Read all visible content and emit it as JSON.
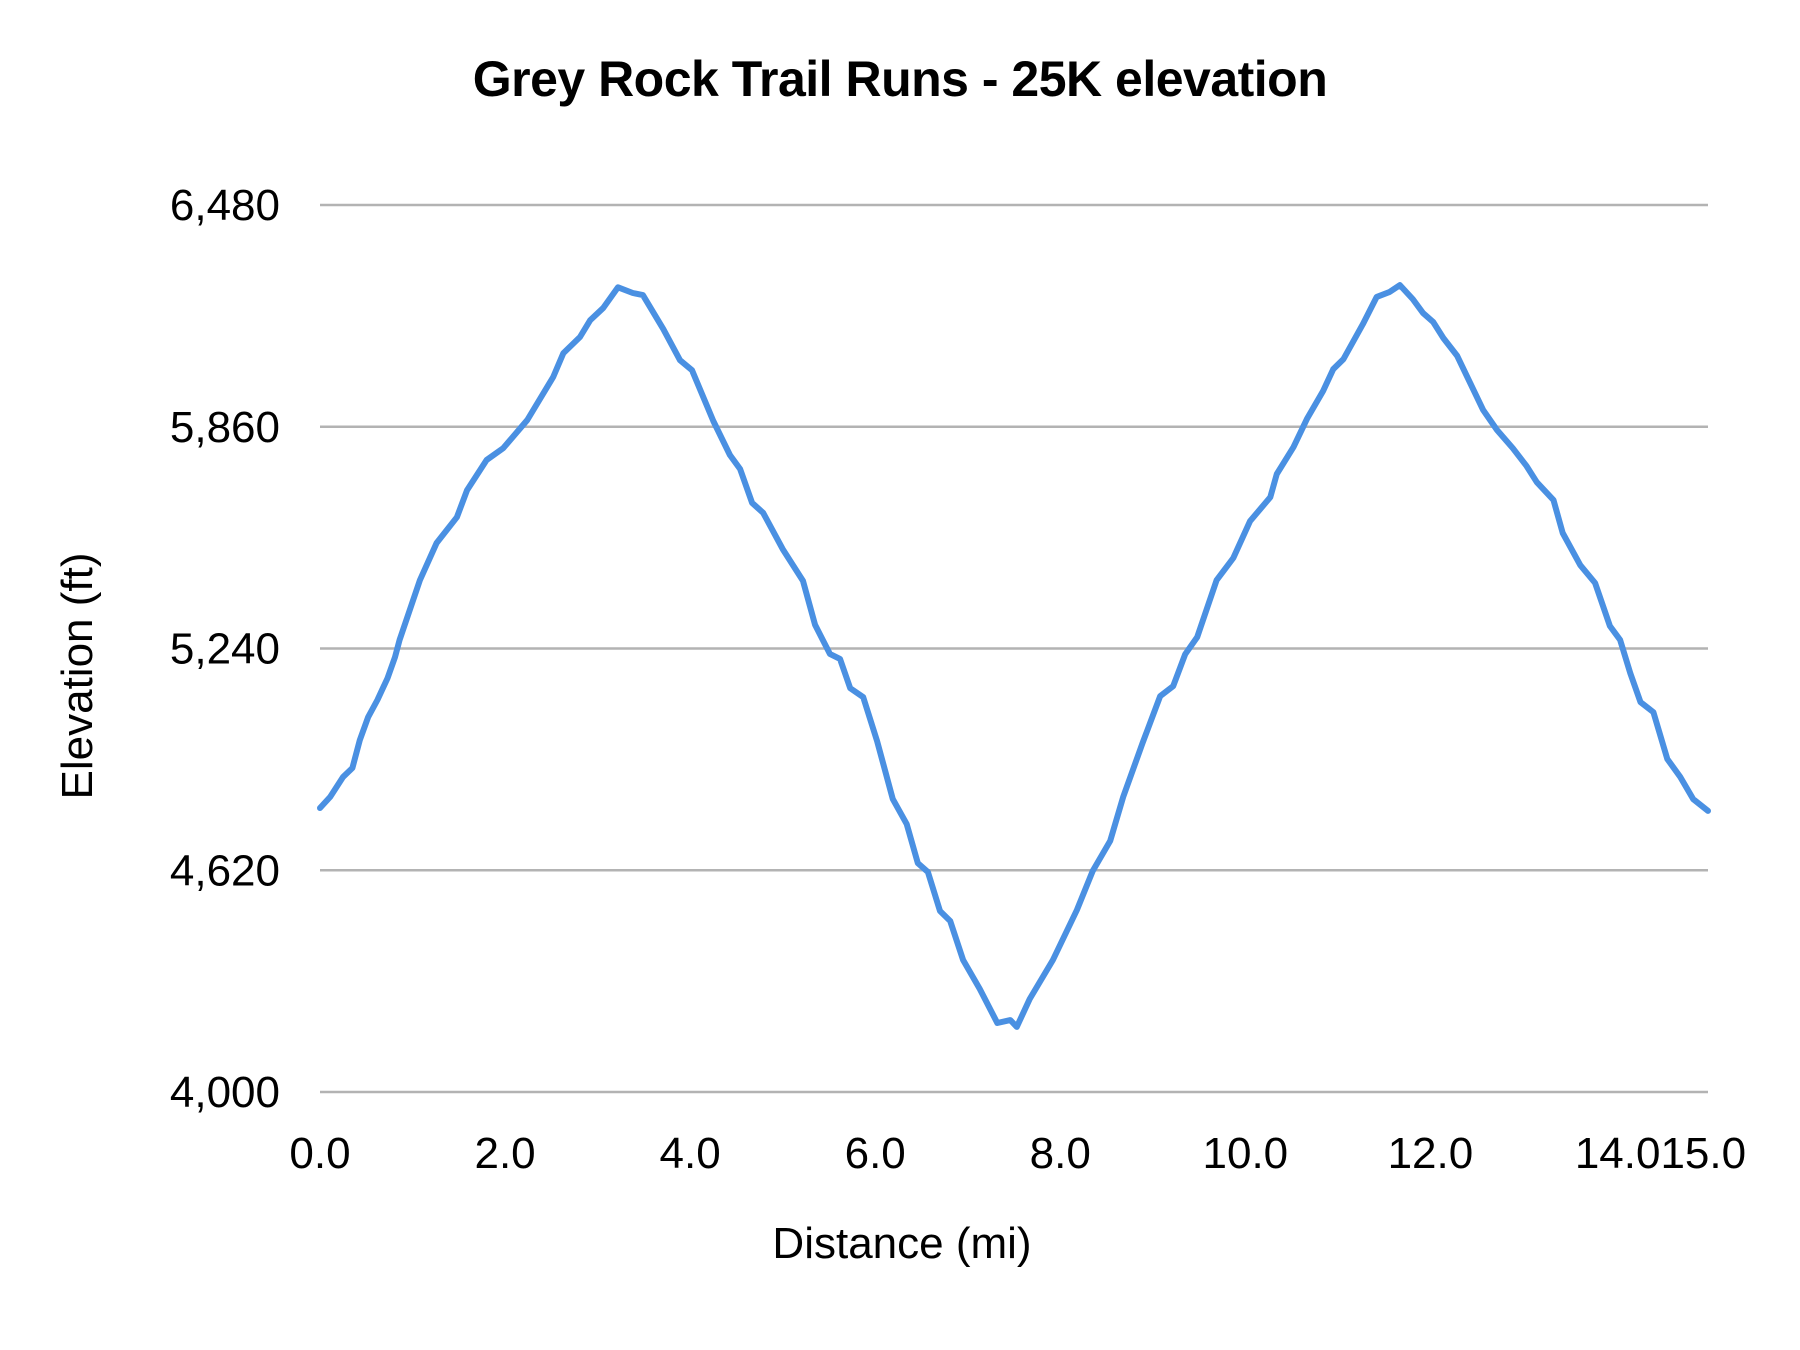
{
  "chart_data": {
    "type": "line",
    "title": "Grey Rock Trail Runs - 25K elevation",
    "xlabel": "Distance (mi)",
    "ylabel": "Elevation (ft)",
    "xlim": [
      0,
      15
    ],
    "ylim": [
      4000,
      6480
    ],
    "grid": "horizontal",
    "legend": "none",
    "x_ticks": [
      0,
      2,
      4,
      6,
      8,
      10,
      12,
      14,
      15
    ],
    "x_tick_labels": [
      "0.0",
      "2.0",
      "4.0",
      "6.0",
      "8.0",
      "10.0",
      "12.0",
      "14.0",
      "15.0"
    ],
    "y_ticks": [
      4000,
      4620,
      5240,
      5860,
      6480
    ],
    "y_tick_labels": [
      "4,000",
      "4,620",
      "5,240",
      "5,860",
      "6,480"
    ],
    "series": [
      {
        "name": "Elevation",
        "color": "#4a90e2",
        "x": [
          0.0,
          0.11,
          0.25,
          0.35,
          0.43,
          0.52,
          0.62,
          0.73,
          0.81,
          0.86,
          1.08,
          1.26,
          1.48,
          1.59,
          1.8,
          1.98,
          2.24,
          2.52,
          2.63,
          2.81,
          2.92,
          3.06,
          3.22,
          3.38,
          3.49,
          3.71,
          3.89,
          4.02,
          4.25,
          4.43,
          4.54,
          4.67,
          4.79,
          5.0,
          5.22,
          5.35,
          5.51,
          5.62,
          5.73,
          5.87,
          6.02,
          6.19,
          6.34,
          6.46,
          6.57,
          6.7,
          6.81,
          6.95,
          7.13,
          7.32,
          7.46,
          7.53,
          7.67,
          7.92,
          8.18,
          8.35,
          8.54,
          8.68,
          8.89,
          9.08,
          9.22,
          9.35,
          9.48,
          9.69,
          9.87,
          10.05,
          10.27,
          10.34,
          10.52,
          10.67,
          10.84,
          10.95,
          11.06,
          11.27,
          11.42,
          11.56,
          11.67,
          11.81,
          11.92,
          12.03,
          12.14,
          12.29,
          12.43,
          12.57,
          12.72,
          12.89,
          13.04,
          13.15,
          13.33,
          13.43,
          13.62,
          13.78,
          13.94,
          14.05,
          14.16,
          14.27,
          14.41,
          14.56,
          14.7,
          14.84,
          15.0
        ],
        "y": [
          4794,
          4825,
          4881,
          4906,
          4984,
          5048,
          5096,
          5157,
          5216,
          5264,
          5431,
          5535,
          5607,
          5683,
          5767,
          5800,
          5879,
          5999,
          6066,
          6111,
          6158,
          6192,
          6250,
          6234,
          6228,
          6133,
          6046,
          6018,
          5876,
          5781,
          5742,
          5647,
          5619,
          5518,
          5429,
          5306,
          5225,
          5211,
          5129,
          5104,
          4981,
          4819,
          4749,
          4640,
          4615,
          4506,
          4478,
          4369,
          4288,
          4193,
          4201,
          4182,
          4260,
          4369,
          4509,
          4618,
          4702,
          4825,
          4976,
          5107,
          5135,
          5224,
          5272,
          5431,
          5493,
          5596,
          5663,
          5728,
          5803,
          5884,
          5960,
          6021,
          6049,
          6147,
          6223,
          6237,
          6256,
          6217,
          6178,
          6153,
          6108,
          6058,
          5982,
          5907,
          5851,
          5800,
          5750,
          5705,
          5655,
          5563,
          5473,
          5423,
          5303,
          5264,
          5171,
          5090,
          5062,
          4931,
          4881,
          4819,
          4786
        ]
      }
    ]
  },
  "colors": {
    "line": "#4a90e2",
    "grid": "#b3b3b3",
    "text": "#000000",
    "background": "#ffffff"
  }
}
